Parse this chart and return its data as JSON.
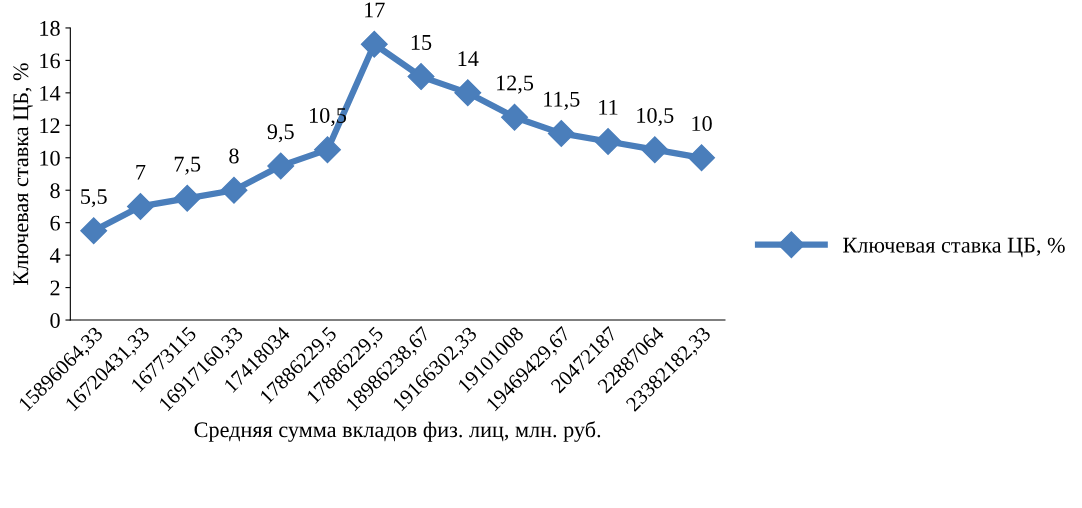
{
  "chart_data": {
    "type": "line",
    "xlabel": "Средняя сумма вкладов физ. лиц, млн. руб.",
    "ylabel": "Ключевая ставка ЦБ, %",
    "categories": [
      "15896064,33",
      "16720431,33",
      "16773115",
      "16917160,33",
      "17418034",
      "17886229,5",
      "17886229,5",
      "18986238,67",
      "19166302,33",
      "19101008",
      "19469429,67",
      "20472187",
      "22887064",
      "23382182,33"
    ],
    "series": [
      {
        "name": "Ключевая ставка ЦБ, %",
        "color": "#4a7ebb",
        "values": [
          5.5,
          7,
          7.5,
          8,
          9.5,
          10.5,
          17,
          15,
          14,
          12.5,
          11.5,
          11,
          10.5,
          10
        ],
        "value_labels": [
          "5,5",
          "7",
          "7,5",
          "8",
          "9,5",
          "10,5",
          "17",
          "15",
          "14",
          "12,5",
          "11,5",
          "11",
          "10,5",
          "10"
        ]
      }
    ],
    "ylim": [
      0,
      18
    ],
    "yticks": [
      0,
      2,
      4,
      6,
      8,
      10,
      12,
      14,
      16,
      18
    ],
    "marker": "diamond",
    "line_style": "solid",
    "grid": false,
    "legend": "right"
  }
}
